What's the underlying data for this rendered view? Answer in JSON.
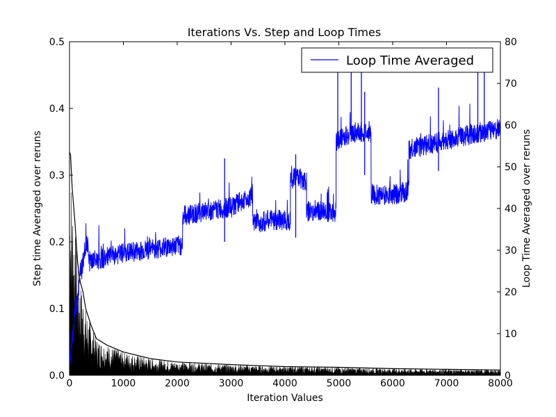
{
  "chart_data": {
    "type": "line",
    "title": "Iterations Vs. Step and Loop Times",
    "xlabel": "Iteration Values",
    "ylabel_left": "Step time Averaged over reruns",
    "ylabel_right": "Loop Time Averaged over reruns",
    "xlim": [
      0,
      8000
    ],
    "ylim_left": [
      0,
      0.5
    ],
    "ylim_right": [
      0,
      80
    ],
    "x_ticks": [
      "0",
      "1000",
      "2000",
      "3000",
      "4000",
      "5000",
      "6000",
      "7000",
      "8000"
    ],
    "y_left_ticks": [
      "0.0",
      "0.1",
      "0.2",
      "0.3",
      "0.4",
      "0.5"
    ],
    "y_right_ticks": [
      "0",
      "10",
      "20",
      "30",
      "40",
      "50",
      "60",
      "70",
      "80"
    ],
    "grid": false,
    "legend_position": "top-right",
    "series": [
      {
        "name": "Loop Time Averaged",
        "axis": "right",
        "color": "#0000ff",
        "segments": [
          {
            "x": [
              0,
              100,
              200,
              300,
              350
            ],
            "y": [
              0,
              14,
              22,
              30,
              31
            ]
          },
          {
            "x": [
              350,
              700,
              1000,
              1500,
              2100
            ],
            "y": [
              26,
              27,
              28,
              29,
              30
            ]
          },
          {
            "x": [
              2100,
              2500,
              3000,
              3400
            ],
            "y": [
              37,
              38,
              39,
              42
            ]
          },
          {
            "x": [
              3400,
              3700,
              4000,
              4100
            ],
            "y": [
              35,
              36,
              36,
              36
            ]
          },
          {
            "x": [
              4100,
              4200,
              4400
            ],
            "y": [
              45,
              47,
              45
            ]
          },
          {
            "x": [
              4400,
              4700,
              4950
            ],
            "y": [
              38,
              38,
              38
            ]
          },
          {
            "x": [
              4950,
              5300,
              5600
            ],
            "y": [
              55,
              57,
              57
            ]
          },
          {
            "x": [
              5600,
              6000,
              6300
            ],
            "y": [
              42,
              42,
              43
            ]
          },
          {
            "x": [
              6300,
              7000,
              7600,
              8000
            ],
            "y": [
              53,
              55,
              57,
              58
            ]
          }
        ],
        "spikes": [
          {
            "x": 4980,
            "y": 76
          },
          {
            "x": 5230,
            "y": 76
          },
          {
            "x": 5420,
            "y": 76
          },
          {
            "x": 5480,
            "y": 68
          },
          {
            "x": 6850,
            "y": 69
          },
          {
            "x": 7580,
            "y": 76
          },
          {
            "x": 7700,
            "y": 76
          },
          {
            "x": 2880,
            "y": 52
          },
          {
            "x": 4200,
            "y": 53
          }
        ]
      },
      {
        "name": "",
        "axis": "left",
        "color": "#000000",
        "x": [
          0,
          20,
          50,
          100,
          150,
          200,
          250,
          300,
          400,
          500,
          700,
          1000,
          1500,
          2000,
          3000,
          4000,
          5000,
          6000,
          7000,
          8000
        ],
        "y": [
          0.335,
          0.33,
          0.28,
          0.23,
          0.17,
          0.14,
          0.125,
          0.1,
          0.075,
          0.055,
          0.045,
          0.035,
          0.025,
          0.02,
          0.016,
          0.013,
          0.012,
          0.01,
          0.009,
          0.008
        ]
      }
    ]
  }
}
